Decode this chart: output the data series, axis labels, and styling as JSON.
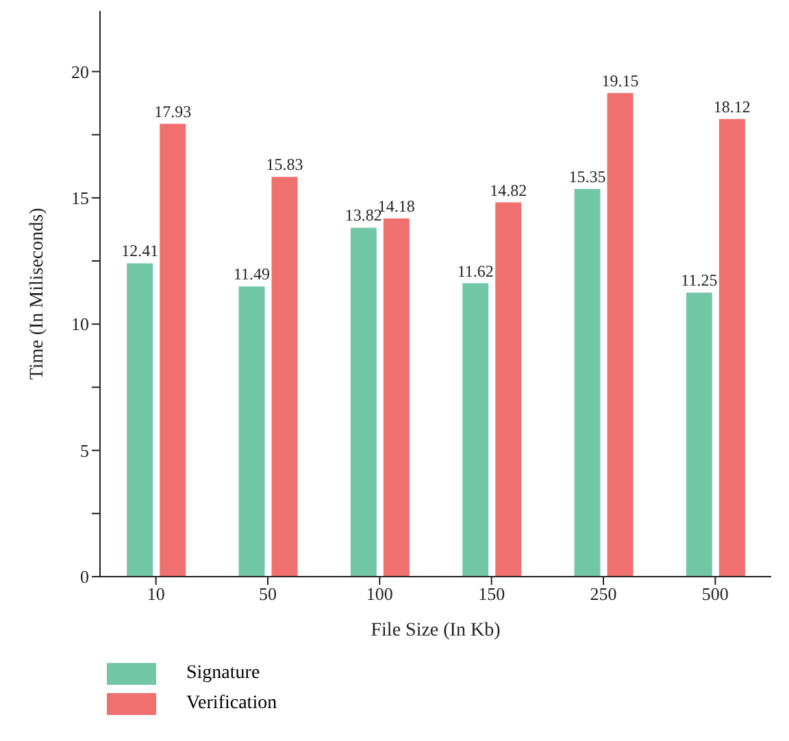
{
  "chart_data": {
    "type": "bar",
    "xlabel": "File Size (In Kb)",
    "ylabel": "Time (In Miliseconds)",
    "categories": [
      "10",
      "50",
      "100",
      "150",
      "250",
      "500"
    ],
    "series": [
      {
        "name": "Signature",
        "color": "#72c7a6",
        "values": [
          12.41,
          11.49,
          13.82,
          11.62,
          15.35,
          11.25
        ]
      },
      {
        "name": "Verification",
        "color": "#f07070",
        "values": [
          17.93,
          15.83,
          14.18,
          14.82,
          19.15,
          18.12
        ]
      }
    ],
    "ylim": [
      0,
      22.4
    ],
    "yticks": [
      0,
      {
        "value": 2.5,
        "label": null
      },
      5,
      {
        "value": 7.5,
        "label": null
      },
      10,
      {
        "value": 12.5,
        "label": null
      },
      15,
      {
        "value": 17.5,
        "label": null
      },
      20
    ],
    "data_labels": true,
    "grid": false,
    "legend": "bottom left"
  }
}
